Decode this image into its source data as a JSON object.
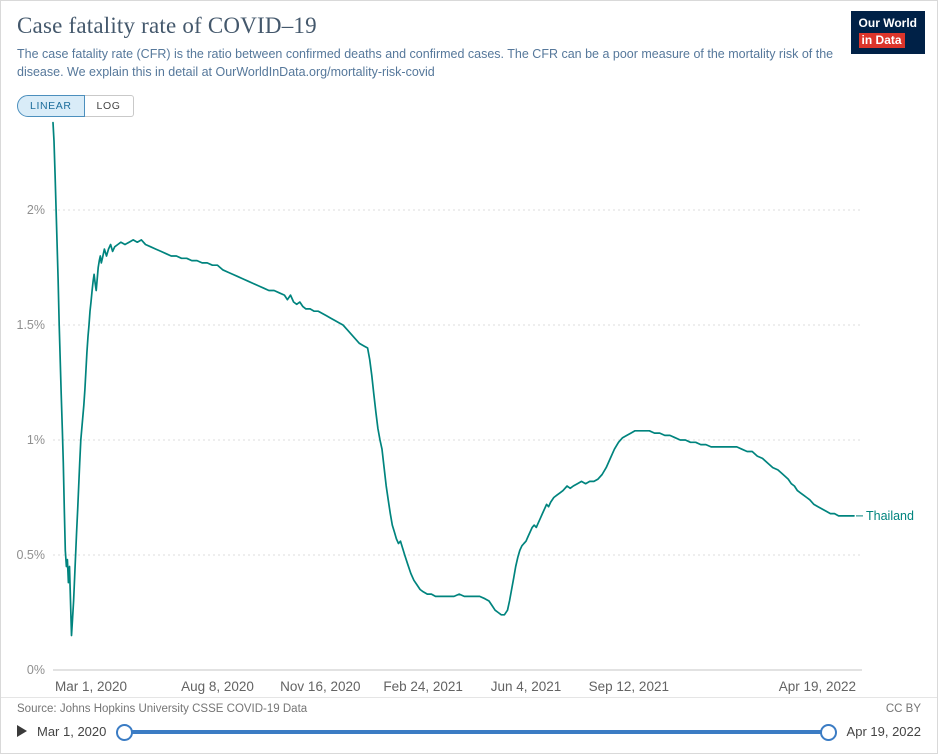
{
  "header": {
    "title": "Case fatality rate of COVID–19",
    "subtitle": "The case fatality rate (CFR) is the ratio between confirmed deaths and confirmed cases. The CFR can be a poor measure of the mortality risk of the disease. We explain this in detail at OurWorldInData.org/mortality-risk-covid",
    "logo": {
      "line1": "Our World",
      "line2": "in Data"
    }
  },
  "controls": {
    "linear_label": "LINEAR",
    "log_label": "LOG"
  },
  "chart_data": {
    "type": "line",
    "title": "Case fatality rate of COVID-19",
    "grid": true,
    "x_axis": {
      "range_days": [
        0,
        779
      ],
      "ticks": [
        {
          "day": 0,
          "label": "Mar 1, 2020"
        },
        {
          "day": 160,
          "label": "Aug 8, 2020"
        },
        {
          "day": 260,
          "label": "Nov 16, 2020"
        },
        {
          "day": 360,
          "label": "Feb 24, 2021"
        },
        {
          "day": 460,
          "label": "Jun 4, 2021"
        },
        {
          "day": 560,
          "label": "Sep 12, 2021"
        },
        {
          "day": 779,
          "label": "Apr 19, 2022"
        }
      ]
    },
    "y_axis": {
      "ylim": [
        0,
        2.4
      ],
      "unit": "%",
      "ticks": [
        {
          "value": 0,
          "label": "0%"
        },
        {
          "value": 0.5,
          "label": "0.5%"
        },
        {
          "value": 1,
          "label": "1%"
        },
        {
          "value": 1.5,
          "label": "1.5%"
        },
        {
          "value": 2,
          "label": "2%"
        }
      ]
    },
    "series": [
      {
        "name": "Thailand",
        "color": "#00847E",
        "unit": "%",
        "points": [
          [
            0,
            2.38
          ],
          [
            1,
            2.3
          ],
          [
            2,
            2.15
          ],
          [
            3,
            2.0
          ],
          [
            4,
            1.85
          ],
          [
            5,
            1.7
          ],
          [
            6,
            1.5
          ],
          [
            7,
            1.35
          ],
          [
            8,
            1.2
          ],
          [
            9,
            1.05
          ],
          [
            10,
            0.9
          ],
          [
            11,
            0.7
          ],
          [
            12,
            0.52
          ],
          [
            13,
            0.45
          ],
          [
            14,
            0.48
          ],
          [
            15,
            0.38
          ],
          [
            16,
            0.45
          ],
          [
            17,
            0.3
          ],
          [
            18,
            0.15
          ],
          [
            19,
            0.22
          ],
          [
            20,
            0.3
          ],
          [
            21,
            0.4
          ],
          [
            22,
            0.5
          ],
          [
            23,
            0.6
          ],
          [
            24,
            0.7
          ],
          [
            25,
            0.8
          ],
          [
            26,
            0.9
          ],
          [
            27,
            1.0
          ],
          [
            28,
            1.05
          ],
          [
            29,
            1.1
          ],
          [
            30,
            1.15
          ],
          [
            31,
            1.22
          ],
          [
            32,
            1.3
          ],
          [
            33,
            1.38
          ],
          [
            34,
            1.45
          ],
          [
            35,
            1.5
          ],
          [
            36,
            1.56
          ],
          [
            37,
            1.6
          ],
          [
            38,
            1.65
          ],
          [
            39,
            1.69
          ],
          [
            40,
            1.72
          ],
          [
            41,
            1.68
          ],
          [
            42,
            1.65
          ],
          [
            43,
            1.7
          ],
          [
            44,
            1.75
          ],
          [
            45,
            1.78
          ],
          [
            46,
            1.8
          ],
          [
            47,
            1.77
          ],
          [
            48,
            1.79
          ],
          [
            49,
            1.81
          ],
          [
            50,
            1.83
          ],
          [
            52,
            1.8
          ],
          [
            54,
            1.83
          ],
          [
            56,
            1.85
          ],
          [
            58,
            1.82
          ],
          [
            60,
            1.84
          ],
          [
            63,
            1.85
          ],
          [
            66,
            1.86
          ],
          [
            70,
            1.85
          ],
          [
            74,
            1.86
          ],
          [
            78,
            1.87
          ],
          [
            82,
            1.86
          ],
          [
            86,
            1.87
          ],
          [
            90,
            1.85
          ],
          [
            95,
            1.84
          ],
          [
            100,
            1.83
          ],
          [
            105,
            1.82
          ],
          [
            110,
            1.81
          ],
          [
            115,
            1.8
          ],
          [
            120,
            1.8
          ],
          [
            125,
            1.79
          ],
          [
            130,
            1.79
          ],
          [
            135,
            1.78
          ],
          [
            140,
            1.78
          ],
          [
            145,
            1.77
          ],
          [
            150,
            1.77
          ],
          [
            155,
            1.76
          ],
          [
            160,
            1.76
          ],
          [
            165,
            1.74
          ],
          [
            170,
            1.73
          ],
          [
            175,
            1.72
          ],
          [
            180,
            1.71
          ],
          [
            185,
            1.7
          ],
          [
            190,
            1.69
          ],
          [
            195,
            1.68
          ],
          [
            200,
            1.67
          ],
          [
            205,
            1.66
          ],
          [
            210,
            1.65
          ],
          [
            215,
            1.65
          ],
          [
            220,
            1.64
          ],
          [
            225,
            1.63
          ],
          [
            228,
            1.61
          ],
          [
            231,
            1.63
          ],
          [
            234,
            1.6
          ],
          [
            237,
            1.59
          ],
          [
            240,
            1.6
          ],
          [
            243,
            1.58
          ],
          [
            246,
            1.57
          ],
          [
            250,
            1.57
          ],
          [
            254,
            1.56
          ],
          [
            258,
            1.56
          ],
          [
            262,
            1.55
          ],
          [
            266,
            1.54
          ],
          [
            270,
            1.53
          ],
          [
            274,
            1.52
          ],
          [
            278,
            1.51
          ],
          [
            282,
            1.5
          ],
          [
            286,
            1.48
          ],
          [
            290,
            1.46
          ],
          [
            294,
            1.44
          ],
          [
            298,
            1.42
          ],
          [
            302,
            1.41
          ],
          [
            306,
            1.4
          ],
          [
            308,
            1.35
          ],
          [
            310,
            1.28
          ],
          [
            312,
            1.2
          ],
          [
            314,
            1.12
          ],
          [
            316,
            1.05
          ],
          [
            318,
            1.0
          ],
          [
            320,
            0.96
          ],
          [
            322,
            0.88
          ],
          [
            324,
            0.8
          ],
          [
            326,
            0.74
          ],
          [
            328,
            0.68
          ],
          [
            330,
            0.63
          ],
          [
            332,
            0.6
          ],
          [
            334,
            0.57
          ],
          [
            336,
            0.55
          ],
          [
            338,
            0.56
          ],
          [
            340,
            0.53
          ],
          [
            342,
            0.5
          ],
          [
            345,
            0.46
          ],
          [
            348,
            0.42
          ],
          [
            351,
            0.39
          ],
          [
            354,
            0.37
          ],
          [
            357,
            0.35
          ],
          [
            360,
            0.34
          ],
          [
            364,
            0.33
          ],
          [
            368,
            0.33
          ],
          [
            372,
            0.32
          ],
          [
            376,
            0.32
          ],
          [
            380,
            0.32
          ],
          [
            385,
            0.32
          ],
          [
            390,
            0.32
          ],
          [
            395,
            0.33
          ],
          [
            400,
            0.32
          ],
          [
            405,
            0.32
          ],
          [
            410,
            0.32
          ],
          [
            415,
            0.32
          ],
          [
            420,
            0.31
          ],
          [
            424,
            0.3
          ],
          [
            427,
            0.28
          ],
          [
            430,
            0.26
          ],
          [
            433,
            0.25
          ],
          [
            436,
            0.24
          ],
          [
            439,
            0.24
          ],
          [
            442,
            0.26
          ],
          [
            444,
            0.3
          ],
          [
            446,
            0.35
          ],
          [
            448,
            0.4
          ],
          [
            450,
            0.45
          ],
          [
            452,
            0.49
          ],
          [
            454,
            0.52
          ],
          [
            456,
            0.54
          ],
          [
            458,
            0.55
          ],
          [
            460,
            0.56
          ],
          [
            462,
            0.58
          ],
          [
            464,
            0.6
          ],
          [
            466,
            0.62
          ],
          [
            468,
            0.63
          ],
          [
            470,
            0.62
          ],
          [
            472,
            0.64
          ],
          [
            474,
            0.66
          ],
          [
            476,
            0.68
          ],
          [
            478,
            0.7
          ],
          [
            480,
            0.72
          ],
          [
            482,
            0.71
          ],
          [
            484,
            0.73
          ],
          [
            487,
            0.75
          ],
          [
            490,
            0.76
          ],
          [
            493,
            0.77
          ],
          [
            496,
            0.78
          ],
          [
            500,
            0.8
          ],
          [
            503,
            0.79
          ],
          [
            506,
            0.8
          ],
          [
            510,
            0.81
          ],
          [
            514,
            0.82
          ],
          [
            518,
            0.81
          ],
          [
            522,
            0.82
          ],
          [
            526,
            0.82
          ],
          [
            530,
            0.83
          ],
          [
            534,
            0.85
          ],
          [
            538,
            0.88
          ],
          [
            542,
            0.92
          ],
          [
            546,
            0.96
          ],
          [
            550,
            0.99
          ],
          [
            554,
            1.01
          ],
          [
            558,
            1.02
          ],
          [
            562,
            1.03
          ],
          [
            566,
            1.04
          ],
          [
            570,
            1.04
          ],
          [
            575,
            1.04
          ],
          [
            580,
            1.04
          ],
          [
            585,
            1.03
          ],
          [
            590,
            1.03
          ],
          [
            595,
            1.02
          ],
          [
            600,
            1.02
          ],
          [
            605,
            1.01
          ],
          [
            610,
            1.0
          ],
          [
            615,
            1.0
          ],
          [
            620,
            0.99
          ],
          [
            625,
            0.99
          ],
          [
            630,
            0.98
          ],
          [
            635,
            0.98
          ],
          [
            640,
            0.97
          ],
          [
            645,
            0.97
          ],
          [
            650,
            0.97
          ],
          [
            655,
            0.97
          ],
          [
            660,
            0.97
          ],
          [
            665,
            0.97
          ],
          [
            670,
            0.96
          ],
          [
            675,
            0.95
          ],
          [
            680,
            0.95
          ],
          [
            685,
            0.93
          ],
          [
            690,
            0.92
          ],
          [
            695,
            0.9
          ],
          [
            700,
            0.88
          ],
          [
            705,
            0.87
          ],
          [
            710,
            0.85
          ],
          [
            715,
            0.83
          ],
          [
            718,
            0.81
          ],
          [
            721,
            0.8
          ],
          [
            724,
            0.78
          ],
          [
            727,
            0.77
          ],
          [
            730,
            0.76
          ],
          [
            733,
            0.75
          ],
          [
            736,
            0.74
          ],
          [
            740,
            0.72
          ],
          [
            744,
            0.71
          ],
          [
            748,
            0.7
          ],
          [
            752,
            0.69
          ],
          [
            756,
            0.68
          ],
          [
            760,
            0.68
          ],
          [
            764,
            0.67
          ],
          [
            768,
            0.67
          ],
          [
            772,
            0.67
          ],
          [
            779,
            0.67
          ]
        ]
      }
    ]
  },
  "footer": {
    "source": "Source: Johns Hopkins University CSSE COVID-19 Data",
    "license": "CC BY"
  },
  "timeline": {
    "start_label": "Mar 1, 2020",
    "end_label": "Apr 19, 2022"
  }
}
